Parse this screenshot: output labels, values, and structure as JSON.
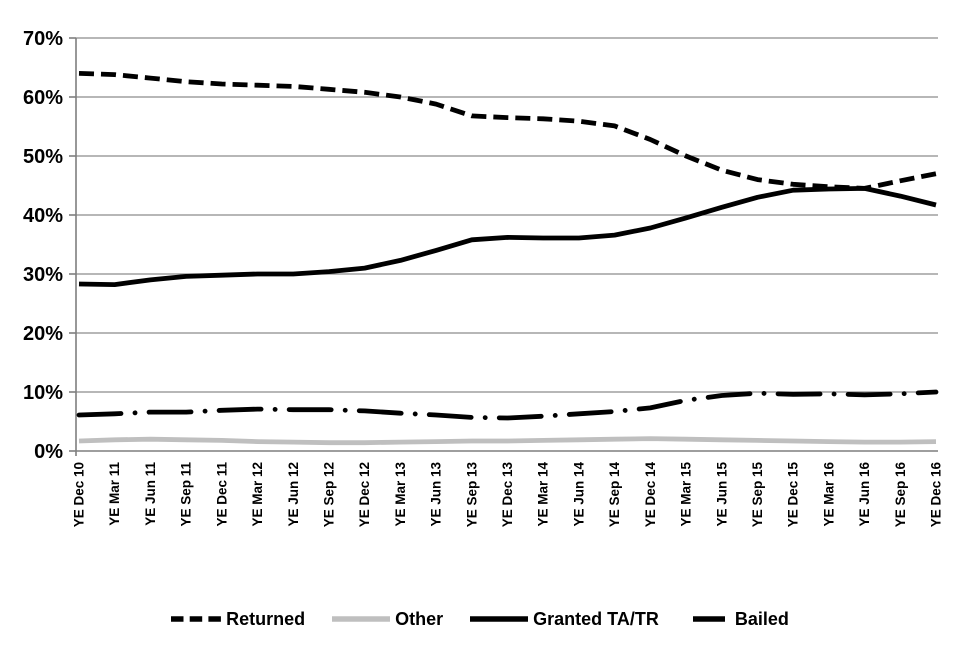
{
  "chart_data": {
    "type": "line",
    "title": "",
    "xlabel": "",
    "ylabel": "",
    "ylim": [
      0,
      70
    ],
    "ytick_step": 10,
    "ytick_labels": [
      "0%",
      "10%",
      "20%",
      "30%",
      "40%",
      "50%",
      "60%",
      "70%"
    ],
    "grid": "horizontal",
    "legend_position": "bottom",
    "categories": [
      "YE Dec 10",
      "YE Mar 11",
      "YE Jun 11",
      "YE Sep 11",
      "YE Dec 11",
      "YE Mar 12",
      "YE Jun 12",
      "YE Sep 12",
      "YE Dec 12",
      "YE Mar 13",
      "YE Jun 13",
      "YE Sep 13",
      "YE Dec 13",
      "YE Mar 14",
      "YE Jun 14",
      "YE Sep 14",
      "YE Dec 14",
      "YE Mar 15",
      "YE Jun 15",
      "YE Sep 15",
      "YE Dec 15",
      "YE Mar 16",
      "YE Jun 16",
      "YE Sep 16",
      "YE Dec 16"
    ],
    "series": [
      {
        "name": "Returned",
        "style": "dashed",
        "color": "#000000",
        "values": [
          64,
          63.8,
          63.2,
          62.6,
          62.2,
          62,
          61.8,
          61.3,
          60.8,
          60,
          58.8,
          56.8,
          56.5,
          56.3,
          55.9,
          55.1,
          52.8,
          50,
          47.6,
          46,
          45.2,
          44.8,
          44.5,
          45.8,
          47
        ]
      },
      {
        "name": "Other",
        "style": "solid",
        "color": "#BFBFBF",
        "values": [
          1.7,
          1.9,
          2,
          1.9,
          1.8,
          1.6,
          1.5,
          1.4,
          1.4,
          1.5,
          1.6,
          1.7,
          1.7,
          1.8,
          1.9,
          2,
          2.1,
          2,
          1.9,
          1.8,
          1.7,
          1.6,
          1.5,
          1.5,
          1.6
        ]
      },
      {
        "name": "Granted TA/TR",
        "style": "solid",
        "color": "#000000",
        "values": [
          28.3,
          28.2,
          29,
          29.6,
          29.8,
          30,
          30,
          30.4,
          31,
          32.3,
          34,
          35.8,
          36.2,
          36.1,
          36.1,
          36.6,
          37.8,
          39.5,
          41.3,
          43,
          44.2,
          44.4,
          44.5,
          43.2,
          41.7
        ]
      },
      {
        "name": "Bailed",
        "style": "dash-dot",
        "color": "#000000",
        "values": [
          6.1,
          6.3,
          6.6,
          6.6,
          6.9,
          7.1,
          7,
          7,
          6.8,
          6.4,
          6.1,
          5.7,
          5.6,
          5.9,
          6.3,
          6.7,
          7.3,
          8.6,
          9.4,
          9.8,
          9.6,
          9.7,
          9.5,
          9.7,
          10
        ]
      }
    ]
  },
  "colors": {
    "gridline": "#8c8c8c",
    "axis": "#7f7f7f",
    "gray_series": "#BFBFBF",
    "black_series": "#000000"
  }
}
